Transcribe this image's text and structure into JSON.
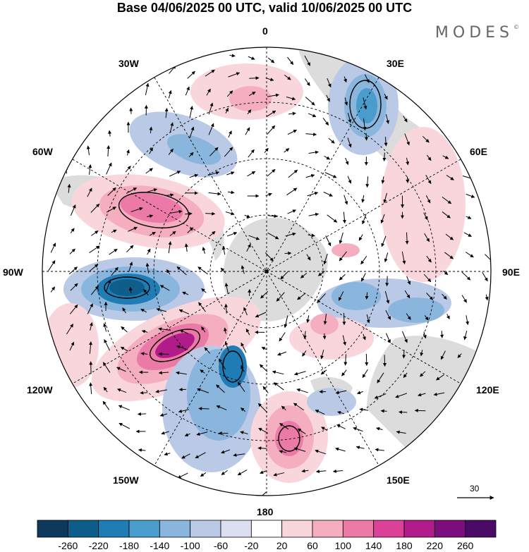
{
  "title": "Base 04/06/2025 00 UTC, valid 10/06/2025 00 UTC",
  "brand": "MODES",
  "brand_mark": "©",
  "longitude_labels": {
    "n0": "0",
    "e30": "30E",
    "e60": "60E",
    "e90": "90E",
    "e120": "120E",
    "e150": "150E",
    "n180": "180",
    "w150": "150W",
    "w120": "120W",
    "w90": "90W",
    "w60": "60W",
    "w30": "30W"
  },
  "vector_reference": "30",
  "colorbar": {
    "labels": [
      "-260",
      "-220",
      "-180",
      "-140",
      "-100",
      "-60",
      "-20",
      "20",
      "60",
      "100",
      "140",
      "180",
      "220",
      "260"
    ],
    "colors": [
      "#0d3a5c",
      "#0e5d8a",
      "#1f7cb4",
      "#4a9ccc",
      "#8ab6de",
      "#b9c9e6",
      "#dcdff0",
      "#ffffff",
      "#f9d6dc",
      "#f5aec0",
      "#ec7aa6",
      "#db4197",
      "#b11b8a",
      "#7d0d7e",
      "#4a0a66"
    ]
  },
  "colors": {
    "land": "#d9d9d9",
    "contour": "#000000",
    "grid": "#000000"
  }
}
